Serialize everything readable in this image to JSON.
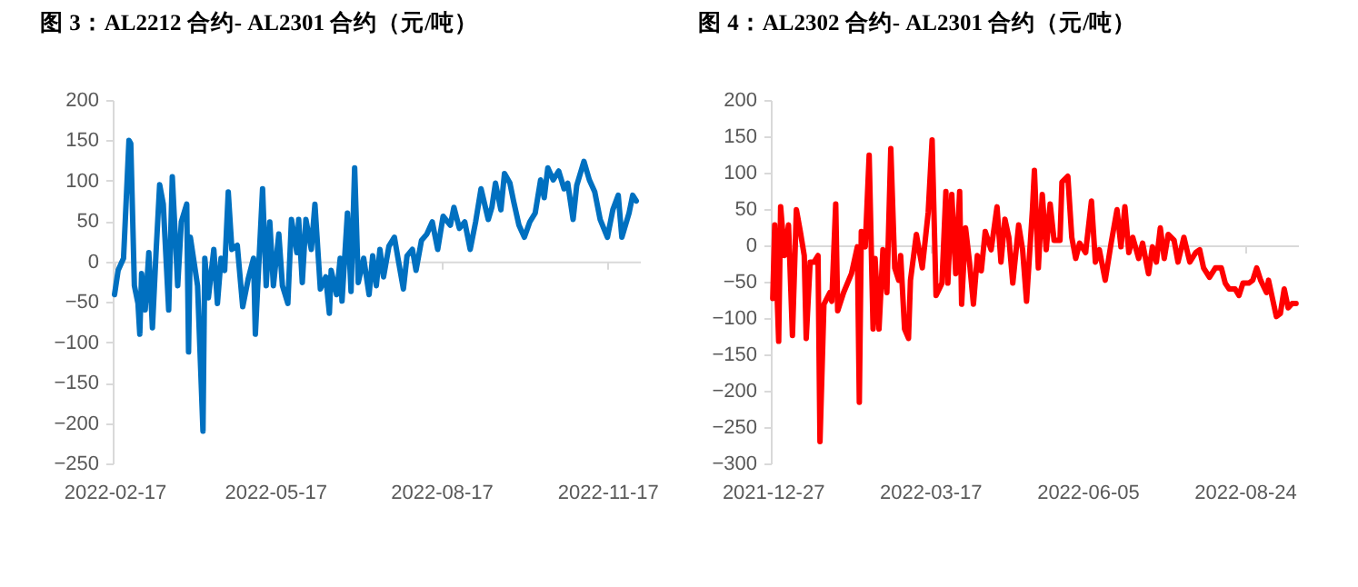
{
  "chart_data": [
    {
      "type": "line",
      "title": "图 3：AL2212 合约- AL2301 合约（元/吨）",
      "x": [
        "2022-02-17",
        "2022-02-19",
        "2022-02-22",
        "2022-02-25",
        "2022-02-26",
        "2022-02-28",
        "2022-03-02",
        "2022-03-03",
        "2022-03-04",
        "2022-03-06",
        "2022-03-08",
        "2022-03-10",
        "2022-03-12",
        "2022-03-14",
        "2022-03-16",
        "2022-03-19",
        "2022-03-21",
        "2022-03-24",
        "2022-03-26",
        "2022-03-29",
        "2022-03-30",
        "2022-03-31",
        "2022-04-04",
        "2022-04-07",
        "2022-04-08",
        "2022-04-10",
        "2022-04-13",
        "2022-04-15",
        "2022-04-17",
        "2022-04-19",
        "2022-04-21",
        "2022-04-23",
        "2022-04-26",
        "2022-04-29",
        "2022-05-02",
        "2022-05-05",
        "2022-05-06",
        "2022-05-10",
        "2022-05-12",
        "2022-05-14",
        "2022-05-16",
        "2022-05-19",
        "2022-05-21",
        "2022-05-24",
        "2022-05-26",
        "2022-05-29",
        "2022-05-30",
        "2022-06-01",
        "2022-06-03",
        "2022-06-06",
        "2022-06-08",
        "2022-06-11",
        "2022-06-14",
        "2022-06-16",
        "2022-06-17",
        "2022-06-20",
        "2022-06-22",
        "2022-06-23",
        "2022-06-26",
        "2022-06-28",
        "2022-06-30",
        "2022-07-02",
        "2022-07-05",
        "2022-07-08",
        "2022-07-10",
        "2022-07-12",
        "2022-07-14",
        "2022-07-16",
        "2022-07-19",
        "2022-07-22",
        "2022-07-24",
        "2022-07-27",
        "2022-07-29",
        "2022-08-01",
        "2022-08-03",
        "2022-08-06",
        "2022-08-09",
        "2022-08-12",
        "2022-08-15",
        "2022-08-18",
        "2022-08-22",
        "2022-08-24",
        "2022-08-27",
        "2022-08-30",
        "2022-09-02",
        "2022-09-05",
        "2022-09-08",
        "2022-09-12",
        "2022-09-14",
        "2022-09-16",
        "2022-09-19",
        "2022-09-21",
        "2022-09-24",
        "2022-09-26",
        "2022-09-29",
        "2022-10-02",
        "2022-10-05",
        "2022-10-08",
        "2022-10-11",
        "2022-10-13",
        "2022-10-15",
        "2022-10-18",
        "2022-10-21",
        "2022-10-24",
        "2022-10-26",
        "2022-10-29",
        "2022-10-31",
        "2022-11-04",
        "2022-11-07",
        "2022-11-10",
        "2022-11-13",
        "2022-11-17",
        "2022-11-20",
        "2022-11-23",
        "2022-11-25",
        "2022-11-29",
        "2022-12-01",
        "2022-12-03"
      ],
      "series": [
        {
          "color": "#0070c0",
          "values": [
            -41,
            -11,
            4,
            150,
            146,
            -30,
            -52,
            -90,
            -15,
            -60,
            11,
            -82,
            11,
            95,
            71,
            -60,
            105,
            -30,
            49,
            71,
            -112,
            30,
            -30,
            -210,
            4,
            -45,
            15,
            -52,
            4,
            -11,
            86,
            15,
            20,
            -56,
            -22,
            4,
            -90,
            90,
            -30,
            49,
            -30,
            34,
            -30,
            -52,
            52,
            11,
            52,
            -26,
            52,
            15,
            71,
            -34,
            -19,
            -64,
            -11,
            -41,
            4,
            -49,
            60,
            -37,
            116,
            -26,
            4,
            -41,
            7,
            -30,
            15,
            -19,
            19,
            30,
            4,
            -34,
            7,
            15,
            -11,
            26,
            34,
            49,
            15,
            56,
            45,
            67,
            41,
            49,
            15,
            49,
            90,
            52,
            67,
            97,
            64,
            109,
            97,
            75,
            45,
            30,
            49,
            60,
            101,
            79,
            116,
            101,
            112,
            90,
            97,
            52,
            94,
            124,
            101,
            86,
            52,
            30,
            64,
            82,
            30,
            60,
            82,
            75
          ]
        }
      ],
      "xlim": [
        "2022-02-16",
        "2022-12-05"
      ],
      "xticks": [
        "2022-02-17",
        "2022-05-17",
        "2022-08-17",
        "2022-11-17"
      ],
      "ylim": [
        -250,
        200
      ],
      "yticks": [
        -250,
        -200,
        -150,
        -100,
        -50,
        0,
        50,
        100,
        150,
        200
      ]
    },
    {
      "type": "line",
      "title": "图 4：AL2302 合约- AL2301 合约（元/吨）",
      "x": [
        "2021-12-27",
        "2021-12-28",
        "2021-12-30",
        "2021-12-31",
        "2022-01-02",
        "2022-01-04",
        "2022-01-06",
        "2022-01-08",
        "2022-01-10",
        "2022-01-12",
        "2022-01-13",
        "2022-01-15",
        "2022-01-17",
        "2022-01-19",
        "2022-01-20",
        "2022-01-22",
        "2022-01-25",
        "2022-01-26",
        "2022-01-28",
        "2022-01-29",
        "2022-02-01",
        "2022-02-05",
        "2022-02-08",
        "2022-02-09",
        "2022-02-10",
        "2022-02-12",
        "2022-02-14",
        "2022-02-16",
        "2022-02-17",
        "2022-02-19",
        "2022-02-21",
        "2022-02-23",
        "2022-02-25",
        "2022-02-27",
        "2022-03-01",
        "2022-03-02",
        "2022-03-04",
        "2022-03-06",
        "2022-03-07",
        "2022-03-10",
        "2022-03-13",
        "2022-03-16",
        "2022-03-18",
        "2022-03-20",
        "2022-03-23",
        "2022-03-25",
        "2022-03-26",
        "2022-03-28",
        "2022-03-30",
        "2022-04-01",
        "2022-04-02",
        "2022-04-04",
        "2022-04-06",
        "2022-04-08",
        "2022-04-10",
        "2022-04-12",
        "2022-04-14",
        "2022-04-17",
        "2022-04-20",
        "2022-04-22",
        "2022-04-24",
        "2022-04-26",
        "2022-04-28",
        "2022-05-01",
        "2022-05-03",
        "2022-05-05",
        "2022-05-08",
        "2022-05-09",
        "2022-05-11",
        "2022-05-13",
        "2022-05-15",
        "2022-05-17",
        "2022-05-19",
        "2022-05-22",
        "2022-05-23",
        "2022-05-26",
        "2022-05-28",
        "2022-05-30",
        "2022-06-01",
        "2022-06-04",
        "2022-06-07",
        "2022-06-09",
        "2022-06-11",
        "2022-06-14",
        "2022-06-17",
        "2022-06-20",
        "2022-06-22",
        "2022-06-24",
        "2022-06-26",
        "2022-06-28",
        "2022-07-01",
        "2022-07-03",
        "2022-07-06",
        "2022-07-08",
        "2022-07-10",
        "2022-07-12",
        "2022-07-14",
        "2022-07-16",
        "2022-07-19",
        "2022-07-21",
        "2022-07-24",
        "2022-07-27",
        "2022-07-30",
        "2022-08-01",
        "2022-08-03",
        "2022-08-06",
        "2022-08-09",
        "2022-08-12",
        "2022-08-14",
        "2022-08-16",
        "2022-08-19",
        "2022-08-21",
        "2022-08-23",
        "2022-08-26",
        "2022-08-28",
        "2022-08-30",
        "2022-09-01",
        "2022-09-04",
        "2022-09-05",
        "2022-09-07",
        "2022-09-09",
        "2022-09-11",
        "2022-09-13",
        "2022-09-15",
        "2022-09-17",
        "2022-09-19"
      ],
      "series": [
        {
          "color": "#ff0000",
          "values": [
            -73,
            28,
            -132,
            53,
            -14,
            28,
            -124,
            49,
            19,
            -14,
            -128,
            -23,
            -23,
            -14,
            -270,
            -81,
            -65,
            -77,
            57,
            -90,
            -65,
            -39,
            -2,
            -216,
            19,
            -2,
            124,
            -115,
            -18,
            -115,
            -6,
            -65,
            133,
            -31,
            -48,
            -14,
            -115,
            -128,
            -48,
            15,
            -31,
            45,
            145,
            -69,
            -52,
            74,
            -52,
            70,
            -39,
            74,
            -81,
            24,
            -23,
            -81,
            -14,
            -35,
            19,
            -6,
            53,
            -23,
            36,
            11,
            -52,
            28,
            -6,
            -77,
            49,
            103,
            -31,
            70,
            -6,
            57,
            7,
            7,
            87,
            95,
            11,
            -18,
            3,
            -10,
            61,
            -23,
            -6,
            -48,
            3,
            49,
            -2,
            53,
            -10,
            11,
            -18,
            3,
            -39,
            -2,
            -23,
            24,
            -18,
            15,
            7,
            -23,
            11,
            -23,
            -10,
            -6,
            -31,
            -44,
            -31,
            -31,
            -52,
            -60,
            -60,
            -69,
            -52,
            -52,
            -48,
            -31,
            -48,
            -65,
            -48,
            -73,
            -98,
            -94,
            -60,
            -86,
            -80,
            -80
          ]
        }
      ],
      "xlim": [
        "2021-12-26",
        "2022-09-20"
      ],
      "xticks": [
        "2021-12-27",
        "2022-03-17",
        "2022-06-05",
        "2022-08-24"
      ],
      "ylim": [
        -300,
        200
      ],
      "yticks": [
        -300,
        -250,
        -200,
        -150,
        -100,
        -50,
        0,
        50,
        100,
        150,
        200
      ]
    }
  ]
}
